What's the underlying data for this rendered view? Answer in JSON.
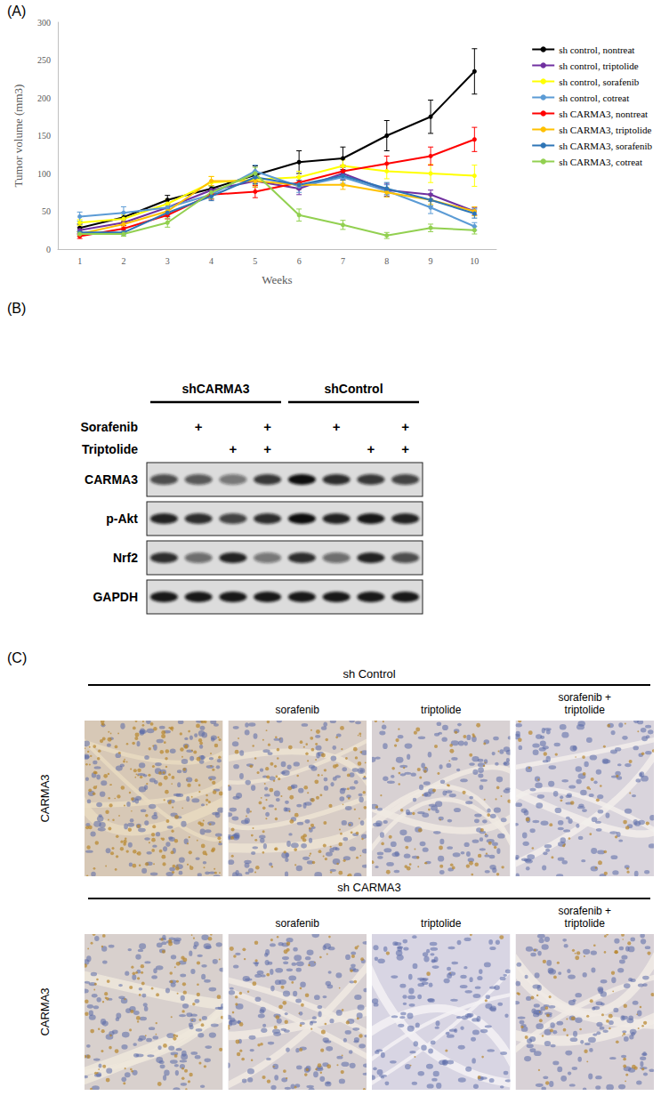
{
  "panel_labels": {
    "A": "(A)",
    "B": "(B)",
    "C": "(C)"
  },
  "chart_data": {
    "type": "line",
    "x_label": "Weeks",
    "y_label": "Tumor volume (mm3)",
    "categories": [
      "1",
      "2",
      "3",
      "4",
      "5",
      "6",
      "7",
      "8",
      "9",
      "10"
    ],
    "ylim": [
      0,
      300
    ],
    "yticks": [
      0,
      50,
      100,
      150,
      200,
      250,
      300
    ],
    "grid": false,
    "legend": "right",
    "marker": "circle",
    "series": [
      {
        "name": "sh control, nontreat",
        "color": "#000000",
        "values": [
          28,
          42,
          65,
          80,
          98,
          115,
          120,
          150,
          175,
          235
        ],
        "errors": [
          5,
          6,
          6,
          8,
          12,
          15,
          15,
          20,
          22,
          30
        ]
      },
      {
        "name": "sh control, triptolide",
        "color": "#7030a0",
        "values": [
          25,
          35,
          55,
          78,
          90,
          80,
          100,
          78,
          72,
          50
        ],
        "errors": [
          4,
          4,
          5,
          6,
          8,
          8,
          8,
          8,
          6,
          5
        ]
      },
      {
        "name": "sh control, sorafenib",
        "color": "#ffff00",
        "values": [
          35,
          40,
          60,
          88,
          92,
          95,
          110,
          103,
          100,
          97
        ],
        "errors": [
          4,
          5,
          6,
          8,
          8,
          8,
          8,
          10,
          12,
          14
        ]
      },
      {
        "name": "sh control, cotreat",
        "color": "#5b9bd5",
        "values": [
          43,
          48,
          55,
          72,
          103,
          83,
          95,
          77,
          55,
          30
        ],
        "errors": [
          6,
          8,
          6,
          6,
          8,
          8,
          8,
          8,
          8,
          5
        ]
      },
      {
        "name": "sh CARMA3, nontreat",
        "color": "#ff0000",
        "values": [
          17,
          27,
          45,
          72,
          76,
          88,
          103,
          113,
          123,
          145
        ],
        "errors": [
          3,
          4,
          5,
          6,
          8,
          8,
          8,
          10,
          12,
          16
        ]
      },
      {
        "name": "sh CARMA3, triptolide",
        "color": "#ffc000",
        "values": [
          20,
          33,
          50,
          90,
          90,
          85,
          85,
          75,
          65,
          50
        ],
        "errors": [
          3,
          4,
          5,
          6,
          8,
          6,
          6,
          6,
          6,
          6
        ]
      },
      {
        "name": "sh CARMA3, sorafenib",
        "color": "#2e75b6",
        "values": [
          22,
          22,
          48,
          70,
          95,
          85,
          97,
          80,
          65,
          47
        ],
        "errors": [
          3,
          3,
          5,
          6,
          8,
          6,
          6,
          8,
          8,
          6
        ]
      },
      {
        "name": "sh CARMA3, cotreat",
        "color": "#92d050",
        "values": [
          20,
          20,
          35,
          75,
          100,
          45,
          32,
          18,
          28,
          25
        ],
        "errors": [
          3,
          3,
          6,
          8,
          8,
          8,
          6,
          4,
          5,
          5
        ]
      }
    ]
  },
  "blot": {
    "groups": [
      {
        "label": "shCARMA3",
        "lanes": 4
      },
      {
        "label": "shControl",
        "lanes": 4
      }
    ],
    "mark": "+",
    "treatments": [
      {
        "label": "Sorafenib",
        "present": [
          false,
          true,
          false,
          true,
          false,
          true,
          false,
          true
        ]
      },
      {
        "label": "Triptolide",
        "present": [
          false,
          false,
          true,
          true,
          false,
          false,
          true,
          true
        ]
      }
    ],
    "bands": [
      {
        "label": "CARMA3",
        "intensity": [
          0.7,
          0.65,
          0.5,
          0.8,
          1.0,
          0.85,
          0.8,
          0.75
        ]
      },
      {
        "label": "p-Akt",
        "intensity": [
          0.9,
          0.85,
          0.75,
          0.85,
          1.0,
          0.9,
          0.95,
          0.9
        ]
      },
      {
        "label": "Nrf2",
        "intensity": [
          0.85,
          0.55,
          0.9,
          0.5,
          0.85,
          0.55,
          0.9,
          0.7
        ]
      },
      {
        "label": "GAPDH",
        "intensity": [
          0.95,
          0.95,
          0.95,
          0.95,
          0.95,
          0.95,
          0.95,
          0.95
        ]
      }
    ]
  },
  "ihc": {
    "row_label": "CARMA3",
    "blocks": [
      {
        "group": "sh Control",
        "columns": [
          null,
          "sorafenib",
          "triptolide",
          "sorafenib + triptolide"
        ],
        "staining": [
          0.9,
          0.6,
          0.35,
          0.2
        ]
      },
      {
        "group": "sh CARMA3",
        "columns": [
          null,
          "sorafenib",
          "triptolide",
          "sorafenib + triptolide"
        ],
        "staining": [
          0.45,
          0.35,
          0.05,
          0.3
        ]
      }
    ]
  }
}
